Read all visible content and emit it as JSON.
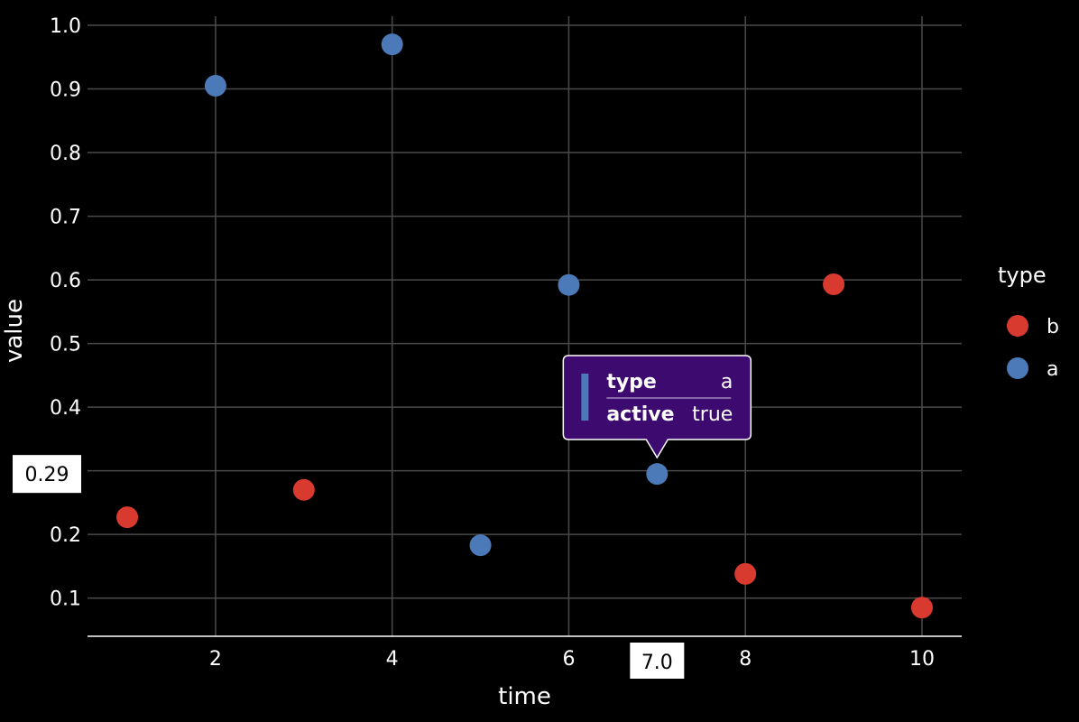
{
  "chart_data": {
    "type": "scatter",
    "xlabel": "time",
    "ylabel": "value",
    "xlim": [
      0.55,
      10.45
    ],
    "ylim": [
      0.04,
      1.0
    ],
    "x_ticks": [
      2,
      4,
      6,
      8,
      10
    ],
    "y_ticks": [
      0.1,
      0.2,
      0.3,
      0.4,
      0.5,
      0.6,
      0.7,
      0.8,
      0.9,
      1.0
    ],
    "grid": true,
    "legend": {
      "title": "type",
      "position": "right",
      "entries": [
        {
          "label": "b",
          "color": "#d93a2f"
        },
        {
          "label": "a",
          "color": "#4c7ab8"
        }
      ]
    },
    "series": [
      {
        "name": "a",
        "color": "#4c7ab8",
        "points": [
          {
            "x": 2,
            "y": 0.905
          },
          {
            "x": 4,
            "y": 0.97
          },
          {
            "x": 5,
            "y": 0.183
          },
          {
            "x": 6,
            "y": 0.592
          },
          {
            "x": 7,
            "y": 0.295
          }
        ]
      },
      {
        "name": "b",
        "color": "#d93a2f",
        "points": [
          {
            "x": 1,
            "y": 0.227
          },
          {
            "x": 3,
            "y": 0.27
          },
          {
            "x": 8,
            "y": 0.138
          },
          {
            "x": 9,
            "y": 0.593
          },
          {
            "x": 10,
            "y": 0.085
          }
        ]
      }
    ],
    "tooltip": {
      "target": {
        "series": "a",
        "x": 7,
        "y": 0.295
      },
      "rows": [
        {
          "key": "type",
          "value": "a"
        },
        {
          "key": "active",
          "value": "true"
        }
      ],
      "background": "#3d0a6f",
      "accent": "#4c7ab8"
    },
    "hover": {
      "x_label": "7.0",
      "y_label": "0.29"
    }
  }
}
